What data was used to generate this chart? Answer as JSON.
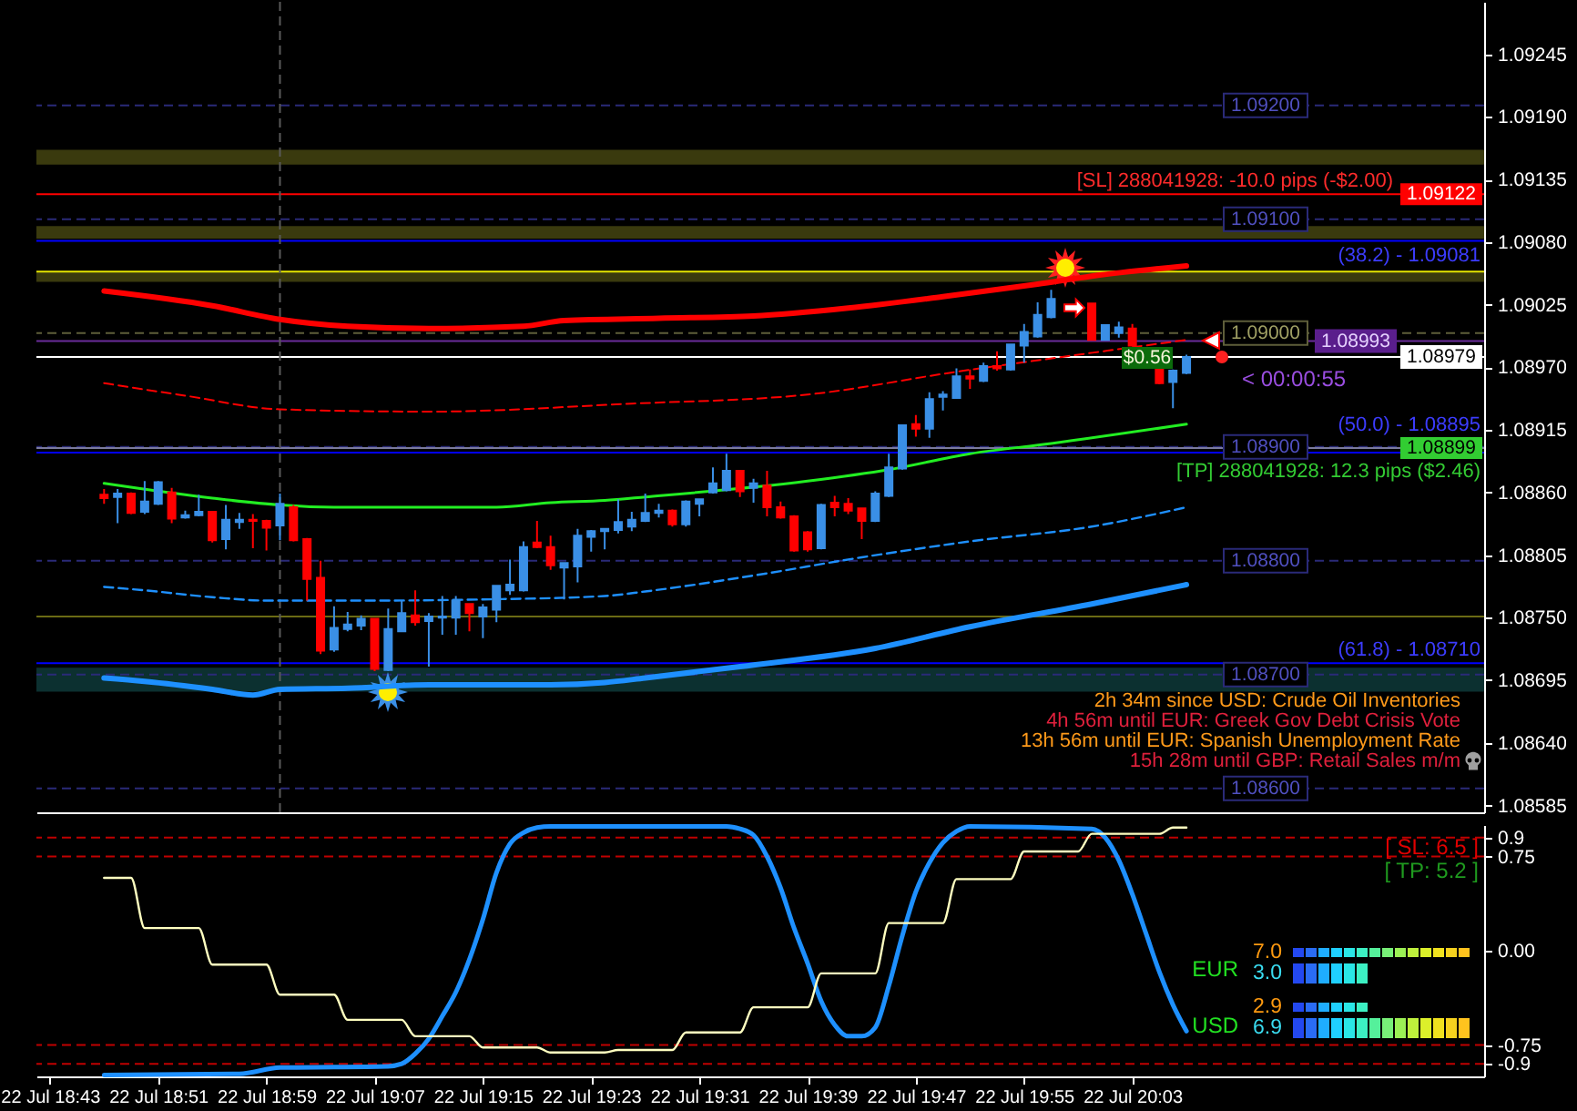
{
  "chart_data": [
    {
      "type": "candlestick",
      "x": [
        "--07-22T18:47",
        "--07-22T18:48",
        "--07-22T18:49",
        "--07-22T18:50",
        "--07-22T18:51",
        "--07-22T18:52",
        "--07-22T18:53",
        "--07-22T18:54",
        "--07-22T18:55",
        "--07-22T18:56",
        "--07-22T18:57",
        "--07-22T18:58",
        "--07-22T18:59",
        "--07-22T19:00",
        "--07-22T19:01",
        "--07-22T19:02",
        "--07-22T19:03",
        "--07-22T19:04",
        "--07-22T19:05",
        "--07-22T19:06",
        "--07-22T19:07",
        "--07-22T19:08",
        "--07-22T19:09",
        "--07-22T19:10",
        "--07-22T19:11",
        "--07-22T19:12",
        "--07-22T19:13",
        "--07-22T19:14",
        "--07-22T19:15",
        "--07-22T19:16",
        "--07-22T19:17",
        "--07-22T19:18",
        "--07-22T19:19",
        "--07-22T19:20",
        "--07-22T19:21",
        "--07-22T19:22",
        "--07-22T19:23",
        "--07-22T19:24",
        "--07-22T19:25",
        "--07-22T19:26",
        "--07-22T19:27",
        "--07-22T19:28",
        "--07-22T19:29",
        "--07-22T19:30",
        "--07-22T19:31",
        "--07-22T19:32",
        "--07-22T19:33",
        "--07-22T19:34",
        "--07-22T19:35",
        "--07-22T19:36",
        "--07-22T19:37",
        "--07-22T19:38",
        "--07-22T19:39",
        "--07-22T19:40",
        "--07-22T19:41",
        "--07-22T19:42",
        "--07-22T19:43",
        "--07-22T19:44",
        "--07-22T19:45",
        "--07-22T19:46",
        "--07-22T19:47",
        "--07-22T19:48",
        "--07-22T19:49",
        "--07-22T19:50",
        "--07-22T19:51",
        "--07-22T19:52",
        "--07-22T19:53",
        "--07-22T19:54",
        "--07-22T19:55",
        "--07-22T19:56",
        "--07-22T19:57",
        "--07-22T20:00",
        "--07-22T20:01",
        "--07-22T20:02",
        "--07-22T20:03",
        "--07-22T20:05",
        "--07-22T20:06",
        "--07-22T20:07"
      ],
      "ohlc": [
        [
          1.08858,
          1.08863,
          1.0885,
          1.08855
        ],
        [
          1.08856,
          1.08863,
          1.08833,
          1.08859
        ],
        [
          1.08859,
          1.0886,
          1.08841,
          1.08842
        ],
        [
          1.08843,
          1.0887,
          1.08841,
          1.08852
        ],
        [
          1.0885,
          1.0887,
          1.08849,
          1.08869
        ],
        [
          1.0886,
          1.08864,
          1.08833,
          1.08837
        ],
        [
          1.08838,
          1.08844,
          1.08837,
          1.0884
        ],
        [
          1.0884,
          1.08858,
          1.08839,
          1.08843
        ],
        [
          1.08843,
          1.08843,
          1.08816,
          1.08818
        ],
        [
          1.08819,
          1.08849,
          1.0881,
          1.08836
        ],
        [
          1.08834,
          1.08842,
          1.08828,
          1.08836
        ],
        [
          1.08836,
          1.08841,
          1.08811,
          1.08835
        ],
        [
          1.08835,
          1.08836,
          1.08809,
          1.08829
        ],
        [
          1.08831,
          1.08859,
          1.08818,
          1.0885
        ],
        [
          1.08847,
          1.08849,
          1.08817,
          1.08818
        ],
        [
          1.08819,
          1.0882,
          1.08765,
          1.08784
        ],
        [
          1.08785,
          1.088,
          1.08718,
          1.08721
        ],
        [
          1.08722,
          1.0876,
          1.0872,
          1.08741
        ],
        [
          1.0874,
          1.08755,
          1.08738,
          1.08744
        ],
        [
          1.08743,
          1.08752,
          1.08739,
          1.08749
        ],
        [
          1.08749,
          1.08749,
          1.08703,
          1.08705
        ],
        [
          1.08704,
          1.08758,
          1.08703,
          1.0874
        ],
        [
          1.08738,
          1.08765,
          1.08738,
          1.08754
        ],
        [
          1.08752,
          1.08774,
          1.08743,
          1.08746
        ],
        [
          1.08747,
          1.08754,
          1.08707,
          1.08751
        ],
        [
          1.0875,
          1.08769,
          1.08735,
          1.08751
        ],
        [
          1.0875,
          1.08769,
          1.08735,
          1.08765
        ],
        [
          1.08762,
          1.08762,
          1.08738,
          1.08754
        ],
        [
          1.08751,
          1.08762,
          1.08732,
          1.08759
        ],
        [
          1.08757,
          1.08778,
          1.08746,
          1.08778
        ],
        [
          1.08774,
          1.08801,
          1.0877,
          1.08779
        ],
        [
          1.08774,
          1.08817,
          1.08773,
          1.08812
        ],
        [
          1.08816,
          1.08835,
          1.08811,
          1.08812
        ],
        [
          1.08812,
          1.08822,
          1.08792,
          1.08796
        ],
        [
          1.08794,
          1.08798,
          1.08766,
          1.08798
        ],
        [
          1.08795,
          1.08828,
          1.08781,
          1.08822
        ],
        [
          1.08821,
          1.08827,
          1.08808,
          1.08826
        ],
        [
          1.08826,
          1.08828,
          1.0881,
          1.08828
        ],
        [
          1.08827,
          1.08854,
          1.08824,
          1.08834
        ],
        [
          1.0883,
          1.08843,
          1.08826,
          1.08836
        ],
        [
          1.08835,
          1.08859,
          1.08834,
          1.08842
        ],
        [
          1.08842,
          1.0885,
          1.08838,
          1.08844
        ],
        [
          1.08844,
          1.08845,
          1.0883,
          1.08832
        ],
        [
          1.08832,
          1.08853,
          1.0883,
          1.08852
        ],
        [
          1.0885,
          1.08854,
          1.08839,
          1.08854
        ],
        [
          1.0886,
          1.08882,
          1.08859,
          1.08868
        ],
        [
          1.08862,
          1.08894,
          1.08861,
          1.08879
        ],
        [
          1.08879,
          1.08879,
          1.08856,
          1.08861
        ],
        [
          1.08864,
          1.08872,
          1.08851,
          1.08868
        ],
        [
          1.08866,
          1.08879,
          1.08839,
          1.08847
        ],
        [
          1.08847,
          1.08852,
          1.08837,
          1.08838
        ],
        [
          1.08839,
          1.0884,
          1.08808,
          1.08809
        ],
        [
          1.08825,
          1.08826,
          1.08808,
          1.0881
        ],
        [
          1.08811,
          1.0885,
          1.0881,
          1.08849
        ],
        [
          1.08851,
          1.08857,
          1.08839,
          1.08847
        ],
        [
          1.0885,
          1.08855,
          1.08841,
          1.08844
        ],
        [
          1.08846,
          1.08846,
          1.08819,
          1.08835
        ],
        [
          1.08835,
          1.08861,
          1.08834,
          1.08859
        ],
        [
          1.08857,
          1.08894,
          1.08856,
          1.08882
        ],
        [
          1.08881,
          1.08919,
          1.0888,
          1.08919
        ],
        [
          1.0892,
          1.08928,
          1.08909,
          1.08916
        ],
        [
          1.08916,
          1.08948,
          1.08908,
          1.08942
        ],
        [
          1.08944,
          1.08949,
          1.08932,
          1.08946
        ],
        [
          1.08943,
          1.08969,
          1.08943,
          1.08962
        ],
        [
          1.08962,
          1.08968,
          1.08951,
          1.0896
        ],
        [
          1.08958,
          1.08974,
          1.08957,
          1.08971
        ],
        [
          1.08971,
          1.08984,
          1.08967,
          1.08969
        ],
        [
          1.08968,
          1.0899,
          1.08967,
          1.0899
        ],
        [
          1.08989,
          1.09008,
          1.08974,
          1.09001
        ],
        [
          1.08997,
          1.09027,
          1.08996,
          1.09016
        ],
        [
          1.09014,
          1.09038,
          1.09013,
          1.0903
        ],
        [
          1.09026,
          1.09026,
          1.08994,
          1.08994
        ],
        [
          1.08994,
          1.09007,
          1.08994,
          1.09007
        ],
        [
          1.09,
          1.0901,
          1.08996,
          1.09005
        ],
        [
          1.09004,
          1.09008,
          1.08989,
          1.08989
        ],
        [
          1.08968,
          1.08968,
          1.08955,
          1.08956
        ],
        [
          1.08957,
          1.08968,
          1.08934,
          1.08967
        ],
        [
          1.08965,
          1.08981,
          1.08964,
          1.08979
        ]
      ],
      "colors": [
        "#ff0000",
        "#3a8fe6",
        "#ff0000",
        "#3a8fe6",
        "#3a8fe6",
        "#ff0000",
        "#3a8fe6",
        "#3a8fe6",
        "#ff0000",
        "#3a8fe6",
        "#3a8fe6",
        "#ff0000",
        "#ff0000",
        "#3a8fe6",
        "#ff0000",
        "#ff0000",
        "#ff0000",
        "#3a8fe6",
        "#3a8fe6",
        "#3a8fe6",
        "#ff0000",
        "#3a8fe6",
        "#3a8fe6",
        "#ff0000",
        "#3a8fe6",
        "#3a8fe6",
        "#3a8fe6",
        "#ff0000",
        "#3a8fe6",
        "#3a8fe6",
        "#3a8fe6",
        "#3a8fe6",
        "#ff0000",
        "#ff0000",
        "#3a8fe6",
        "#3a8fe6",
        "#3a8fe6",
        "#3a8fe6",
        "#3a8fe6",
        "#3a8fe6",
        "#3a8fe6",
        "#3a8fe6",
        "#ff0000",
        "#3a8fe6",
        "#3a8fe6",
        "#3a8fe6",
        "#3a8fe6",
        "#ff0000",
        "#3a8fe6",
        "#ff0000",
        "#ff0000",
        "#ff0000",
        "#ff0000",
        "#3a8fe6",
        "#ff0000",
        "#ff0000",
        "#ff0000",
        "#3a8fe6",
        "#3a8fe6",
        "#3a8fe6",
        "#ff0000",
        "#3a8fe6",
        "#3a8fe6",
        "#3a8fe6",
        "#ff0000",
        "#3a8fe6",
        "#ff0000",
        "#3a8fe6",
        "#3a8fe6",
        "#3a8fe6",
        "#3a8fe6",
        "#ff0000",
        "#3a8fe6",
        "#3a8fe6",
        "#ff0000",
        "#ff0000",
        "#3a8fe6",
        "#3a8fe6"
      ],
      "series": [
        {
          "type": "line",
          "color": "#ff0000",
          "x": [
            "--07-22T18:47",
            "--07-22T18:55",
            "--07-22T19:00",
            "--07-22T19:05",
            "--07-22T19:11",
            "--07-22T19:18",
            "--07-22T19:21",
            "--07-22T19:28",
            "--07-22T19:35",
            "--07-22T19:42",
            "--07-22T19:49",
            "--07-22T19:56",
            "--07-22T20:00",
            "--07-22T20:07"
          ],
          "values": [
            1.09037,
            1.09024,
            1.09012,
            1.09006,
            1.09004,
            1.09006,
            1.09011,
            1.09013,
            1.09015,
            1.09022,
            1.09032,
            1.09043,
            1.0905,
            1.09059
          ]
        },
        {
          "type": "line",
          "color": "#ff0000",
          "line_style": "dashed",
          "x": [
            "--07-22T18:47",
            "--07-22T18:53",
            "--07-22T19:00",
            "--07-22T19:11",
            "--07-22T19:26",
            "--07-22T19:39",
            "--07-22T19:50",
            "--07-22T19:59",
            "--07-22T20:07"
          ],
          "values": [
            1.08956,
            1.08945,
            1.08933,
            1.08931,
            1.08938,
            1.08946,
            1.08966,
            1.08981,
            1.08994
          ]
        },
        {
          "type": "line",
          "color": "#22ee22",
          "x": [
            "--07-22T18:47",
            "--07-22T18:55",
            "--07-22T19:00",
            "--07-22T19:04",
            "--07-22T19:16",
            "--07-22T19:20",
            "--07-22T19:24",
            "--07-22T19:27",
            "--07-22T19:39",
            "--07-22T19:45",
            "--07-22T19:51",
            "--07-22T19:57",
            "--07-22T20:07"
          ],
          "values": [
            1.08868,
            1.08855,
            1.08849,
            1.08847,
            1.08847,
            1.08851,
            1.08853,
            1.08856,
            1.0887,
            1.0888,
            1.08894,
            1.08903,
            1.0892
          ]
        },
        {
          "type": "line",
          "color": "#1e90ff",
          "line_style": "dashed",
          "x": [
            "--07-22T18:47",
            "--07-22T18:50",
            "--07-22T18:55",
            "--07-22T18:59",
            "--07-22T19:07",
            "--07-22T19:15",
            "--07-22T19:24",
            "--07-22T19:27",
            "--07-22T19:35",
            "--07-22T19:43",
            "--07-22T19:51",
            "--07-22T20:00",
            "--07-22T20:07"
          ],
          "values": [
            1.08777,
            1.08774,
            1.08768,
            1.08765,
            1.08765,
            1.08766,
            1.08769,
            1.08773,
            1.08787,
            1.08803,
            1.08817,
            1.0883,
            1.08847
          ]
        },
        {
          "type": "line",
          "color": "#1e90ff",
          "x": [
            "--07-22T18:47",
            "--07-22T18:50",
            "--07-22T18:55",
            "--07-22T18:58",
            "--07-22T19:00",
            "--07-22T19:05",
            "--07-22T19:11",
            "--07-22T19:20",
            "--07-22T19:24",
            "--07-22T19:27",
            "--07-22T19:34",
            "--07-22T19:44",
            "--07-22T19:51",
            "--07-22T20:00",
            "--07-22T20:07"
          ],
          "values": [
            1.08697,
            1.08694,
            1.08687,
            1.08682,
            1.08687,
            1.08688,
            1.08691,
            1.08691,
            1.08693,
            1.08697,
            1.08707,
            1.08723,
            1.08742,
            1.08762,
            1.08779
          ]
        }
      ],
      "xlim": [
        "--07-22T18:42",
        "--07-22T20:29"
      ],
      "ylim": [
        1.08579,
        1.09291
      ],
      "yticks": [
        1.09245,
        {
          "value": 1.0919,
          "label": "1.09190"
        },
        1.09135,
        {
          "value": 1.0908,
          "label": "1.09080"
        },
        1.09025,
        {
          "value": 1.0897,
          "label": "1.08970"
        },
        1.08915,
        {
          "value": 1.0886,
          "label": "1.08860"
        },
        1.08805,
        {
          "value": 1.0875,
          "label": "1.08750"
        },
        1.08695,
        {
          "value": 1.0864,
          "label": "1.08640"
        },
        1.08585
      ],
      "tick_labels": "y",
      "bands": [
        {
          "axis": "y",
          "from": 1.09148,
          "to": 1.09161,
          "color": "#3a3a0e"
        },
        {
          "axis": "y",
          "from": 1.09083,
          "to": 1.09094,
          "color": "#3a3a0e"
        },
        {
          "axis": "y",
          "from": 1.09045,
          "to": 1.09054,
          "color": "#3a3a0e"
        },
        {
          "axis": "y",
          "from": 1.08685,
          "to": 1.08706,
          "color": "#0c3030"
        }
      ],
      "ref_lines": [
        {
          "axis": "y",
          "value": 1.092,
          "label": "1.09200",
          "color": "#2a2a78",
          "line_style": "dashed"
        },
        {
          "axis": "y",
          "value": 1.091,
          "label": "1.09100",
          "color": "#2a2a78",
          "line_style": "dashed"
        },
        {
          "axis": "y",
          "value": 1.09,
          "label": "1.09000",
          "color": "#5e5e3a",
          "line_style": "dashed"
        },
        {
          "axis": "y",
          "value": 1.089,
          "label": "1.08900",
          "color": "#2a2a78",
          "line_style": "dashed"
        },
        {
          "axis": "y",
          "value": 1.088,
          "label": "1.08800",
          "color": "#2a2a78",
          "line_style": "dashed"
        },
        {
          "axis": "y",
          "value": 1.087,
          "label": "1.08700",
          "color": "#2a2a78",
          "line_style": "dashed"
        },
        {
          "axis": "y",
          "value": 1.086,
          "label": "1.08600",
          "color": "#2a2a78",
          "line_style": "dashed"
        },
        {
          "axis": "y",
          "value": 1.09122,
          "color": "#ff0000",
          "line_style": "solid"
        },
        {
          "axis": "y",
          "value": 1.09081,
          "color": "#0000ff",
          "line_style": "solid"
        },
        {
          "axis": "y",
          "value": 1.08895,
          "color": "#0000ff",
          "line_style": "solid"
        },
        {
          "axis": "y",
          "value": 1.0871,
          "color": "#0000ff",
          "line_style": "solid"
        },
        {
          "axis": "y",
          "value": 1.08899,
          "color": "#7a7a9e",
          "line_style": "solid"
        },
        {
          "axis": "y",
          "value": 1.08993,
          "label": "1.08993",
          "color": "#6a2c9a",
          "line_style": "solid"
        },
        {
          "axis": "y",
          "value": 1.08979,
          "label": "1.08979",
          "color": "#ffffff",
          "line_style": "solid"
        },
        {
          "axis": "y",
          "value": 1.09054,
          "color": "#e6e600",
          "line_style": "solid"
        },
        {
          "axis": "y",
          "value": 1.08751,
          "color": "#6b6b14",
          "line_style": "solid"
        },
        {
          "axis": "x",
          "value": "--07-22T19:00",
          "color": "#5a5a5a",
          "line_style": "dashed"
        }
      ],
      "annotations": [
        {
          "text": "[SL] 288041928: -10.0 pips (-$2.00)",
          "y": 1.09122
        },
        {
          "text": "1.09122",
          "y": 1.09122
        },
        {
          "text": "(38.2) - 1.09081",
          "y": 1.09081
        },
        {
          "text": "(50.0) - 1.08895",
          "y": 1.08895
        },
        {
          "text": "(61.8) - 1.08710",
          "y": 1.0871
        },
        {
          "text": "[TP] 288041928: 12.3 pips ($2.46)",
          "y": 1.08899
        },
        {
          "text": "1.08899",
          "y": 1.08899
        },
        "$0.56",
        "< 00:00:55",
        "2h 34m since USD: Crude Oil Inventories",
        "4h 56m until EUR: Greek Gov Debt Crisis Vote",
        "13h 56m until EUR: Spanish Unemployment Rate",
        "15h 28m until GBP: Retail Sales m/m"
      ]
    },
    {
      "type": "line",
      "series": [
        {
          "color": "#1e90ff",
          "x": [
            "--07-22T18:47",
            "--07-22T18:57",
            "--07-22T19:00",
            "--07-22T19:08",
            "--07-22T19:09",
            "--07-22T19:10",
            "--07-22T19:11",
            "--07-22T19:12",
            "--07-22T19:13",
            "--07-22T19:14",
            "--07-22T19:15",
            "--07-22T19:16",
            "--07-22T19:17",
            "--07-22T19:18",
            "--07-22T19:19",
            "--07-22T19:20",
            "--07-22T19:33",
            "--07-22T19:34",
            "--07-22T19:35",
            "--07-22T19:36",
            "--07-22T19:37",
            "--07-22T19:38",
            "--07-22T19:39",
            "--07-22T19:40",
            "--07-22T19:41",
            "--07-22T19:42",
            "--07-22T19:43",
            "--07-22T19:44",
            "--07-22T19:45",
            "--07-22T19:46",
            "--07-22T19:47",
            "--07-22T19:48",
            "--07-22T19:49",
            "--07-22T19:50",
            "--07-22T19:51",
            "--07-22T20:00",
            "--07-22T20:01",
            "--07-22T20:02",
            "--07-22T20:03",
            "--07-22T20:04",
            "--07-22T20:05",
            "--07-22T20:06",
            "--07-22T20:07"
          ],
          "values": [
            -0.99,
            -0.98,
            -0.93,
            -0.92,
            -0.9,
            -0.82,
            -0.7,
            -0.52,
            -0.33,
            -0.07,
            0.25,
            0.62,
            0.85,
            0.94,
            0.98,
            0.99,
            0.99,
            0.97,
            0.92,
            0.75,
            0.5,
            0.18,
            -0.1,
            -0.4,
            -0.59,
            -0.68,
            -0.68,
            -0.61,
            -0.28,
            0.12,
            0.47,
            0.7,
            0.86,
            0.95,
            0.99,
            0.97,
            0.9,
            0.72,
            0.45,
            0.14,
            -0.17,
            -0.43,
            -0.64
          ]
        },
        {
          "color": "#ffffc0",
          "x": [
            "--07-22T18:47",
            "--07-22T18:49",
            "--07-22T18:50",
            "--07-22T18:54",
            "--07-22T18:55",
            "--07-22T18:59",
            "--07-22T19:00",
            "--07-22T19:04",
            "--07-22T19:05",
            "--07-22T19:09",
            "--07-22T19:10",
            "--07-22T19:14",
            "--07-22T19:15",
            "--07-22T19:19",
            "--07-22T19:20",
            "--07-22T19:24",
            "--07-22T19:25",
            "--07-22T19:29",
            "--07-22T19:30",
            "--07-22T19:34",
            "--07-22T19:35",
            "--07-22T19:39",
            "--07-22T19:40",
            "--07-22T19:44",
            "--07-22T19:45",
            "--07-22T19:49",
            "--07-22T19:50",
            "--07-22T19:54",
            "--07-22T19:55",
            "--07-22T19:59",
            "--07-22T20:00",
            "--07-22T20:05",
            "--07-22T20:06",
            "--07-22T20:07"
          ],
          "values": [
            0.58,
            0.58,
            0.18,
            0.18,
            -0.11,
            -0.11,
            -0.35,
            -0.35,
            -0.55,
            -0.55,
            -0.68,
            -0.68,
            -0.77,
            -0.77,
            -0.81,
            -0.81,
            -0.79,
            -0.79,
            -0.65,
            -0.65,
            -0.45,
            -0.45,
            -0.18,
            -0.18,
            0.22,
            0.22,
            0.57,
            0.57,
            0.79,
            0.79,
            0.93,
            0.93,
            0.98,
            0.98
          ]
        }
      ],
      "xlim": [
        "--07-22T18:42",
        "--07-22T20:29"
      ],
      "xticks": [
        {
          "value": "--07-22T18:43",
          "label": "22 Jul 18:43"
        },
        {
          "value": "--07-22T18:51",
          "label": "22 Jul 18:51"
        },
        {
          "value": "--07-22T18:59",
          "label": "22 Jul 18:59"
        },
        {
          "value": "--07-22T19:07",
          "label": "22 Jul 19:07"
        },
        {
          "value": "--07-22T19:15",
          "label": "22 Jul 19:15"
        },
        {
          "value": "--07-22T19:23",
          "label": "22 Jul 19:23"
        },
        {
          "value": "--07-22T19:31",
          "label": "22 Jul 19:31"
        },
        {
          "value": "--07-22T19:39",
          "label": "22 Jul 19:39"
        },
        {
          "value": "--07-22T19:47",
          "label": "22 Jul 19:47"
        },
        {
          "value": "--07-22T19:55",
          "label": "22 Jul 19:55"
        },
        {
          "value": "--07-22T20:03",
          "label": "22 Jul 20:03"
        }
      ],
      "ylim": [
        -1,
        1
      ],
      "yticks": [
        0.9,
        0.75,
        {
          "value": 0,
          "label": "0.00"
        },
        -0.75,
        -0.9
      ],
      "ref_lines": [
        {
          "axis": "y",
          "value": 0.9,
          "color": "#c00000",
          "line_style": "dashed"
        },
        {
          "axis": "y",
          "value": 0.75,
          "color": "#c00000",
          "line_style": "dashed"
        },
        {
          "axis": "y",
          "value": -0.75,
          "color": "#c00000",
          "line_style": "dashed"
        },
        {
          "axis": "y",
          "value": -0.9,
          "color": "#c00000",
          "line_style": "dashed"
        }
      ],
      "annotations": [
        "[ SL: 6.5 ]",
        "[ TP: 5.2 ]",
        "EUR",
        "7.0",
        "3.0",
        "USD",
        "2.9",
        "6.9"
      ]
    }
  ]
}
